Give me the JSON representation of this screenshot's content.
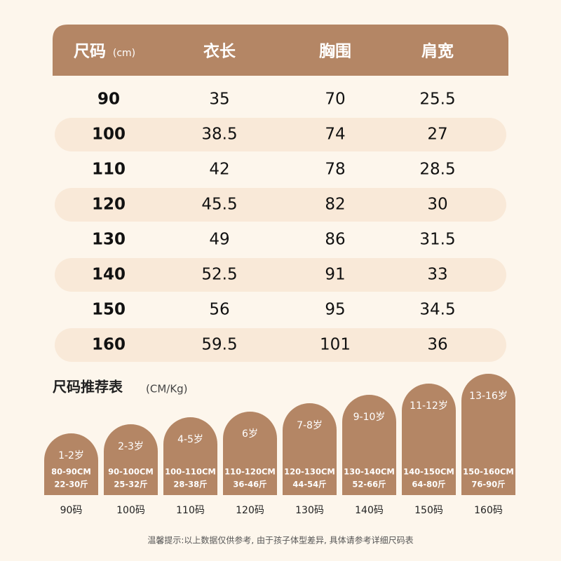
{
  "header": {
    "columns": [
      {
        "label": "尺码",
        "unit": "(cm)"
      },
      {
        "label": "衣长"
      },
      {
        "label": "胸围"
      },
      {
        "label": "肩宽"
      }
    ]
  },
  "table": {
    "rows": [
      [
        "90",
        "35",
        "70",
        "25.5"
      ],
      [
        "100",
        "38.5",
        "74",
        "27"
      ],
      [
        "110",
        "42",
        "78",
        "28.5"
      ],
      [
        "120",
        "45.5",
        "82",
        "30"
      ],
      [
        "130",
        "49",
        "86",
        "31.5"
      ],
      [
        "140",
        "52.5",
        "91",
        "33"
      ],
      [
        "150",
        "56",
        "95",
        "34.5"
      ],
      [
        "160",
        "59.5",
        "101",
        "36"
      ]
    ]
  },
  "recommend": {
    "title": "尺码推荐表",
    "unit": "(CM/Kg)",
    "cards": [
      {
        "age": "1-2岁",
        "height": "80-90CM",
        "weight": "22-30斤",
        "size": "90码"
      },
      {
        "age": "2-3岁",
        "height": "90-100CM",
        "weight": "25-32斤",
        "size": "100码"
      },
      {
        "age": "4-5岁",
        "height": "100-110CM",
        "weight": "28-38斤",
        "size": "110码"
      },
      {
        "age": "6岁",
        "height": "110-120CM",
        "weight": "36-46斤",
        "size": "120码"
      },
      {
        "age": "7-8岁",
        "height": "120-130CM",
        "weight": "44-54斤",
        "size": "130码"
      },
      {
        "age": "9-10岁",
        "height": "130-140CM",
        "weight": "52-66斤",
        "size": "140码"
      },
      {
        "age": "11-12岁",
        "height": "140-150CM",
        "weight": "64-80斤",
        "size": "150码"
      },
      {
        "age": "13-16岁",
        "height": "150-160CM",
        "weight": "76-90斤",
        "size": "160码"
      }
    ]
  },
  "footer": {
    "note": "温馨提示:以上数据仅供参考, 由于孩子体型差异, 具体请参考详细尺码表"
  }
}
